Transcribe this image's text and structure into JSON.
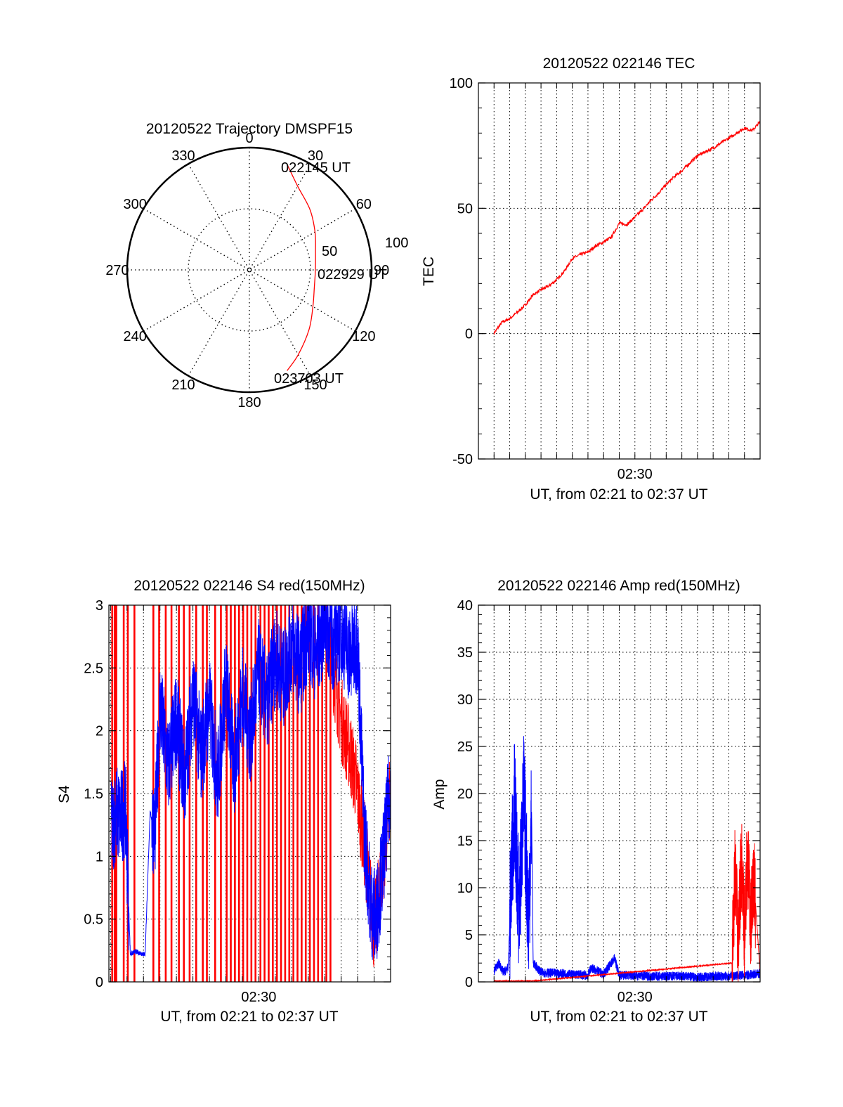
{
  "colors": {
    "red": "#ff0000",
    "blue": "#0000ff",
    "axis": "#000000",
    "grid": "#000000",
    "background": "#ffffff"
  },
  "polar": {
    "title": "20120522 Trajectory DMSPF15",
    "azimuth_labels": [
      "0",
      "30",
      "60",
      "90",
      "120",
      "150",
      "180",
      "210",
      "240",
      "270",
      "300",
      "330"
    ],
    "ring_labels": [
      "50",
      "100"
    ],
    "start_label": "022145 UT",
    "mid_label": "022929 UT",
    "end_label": "023703 UT"
  },
  "chart_data": [
    {
      "id": "trajectory",
      "type": "scatter",
      "title": "20120522 Trajectory DMSPF15",
      "coordinate_system": "polar",
      "angle_axis": "azimuth in degrees (0 at top, clockwise)",
      "radius_axis": "distance from zenith (0 center, 100 rim)",
      "rlim": [
        0,
        100
      ],
      "rings": [
        50,
        100
      ],
      "series": [
        {
          "color": "#ff0000",
          "points": [
            {
              "az": 19.5,
              "r": 92.0
            },
            {
              "az": 30,
              "r": 79.0
            },
            {
              "az": 45,
              "r": 70.0
            },
            {
              "az": 60,
              "r": 62.0
            },
            {
              "az": 75,
              "r": 56.0
            },
            {
              "az": 90,
              "r": 54.0
            },
            {
              "az": 105,
              "r": 55.0
            },
            {
              "az": 120,
              "r": 60.0
            },
            {
              "az": 135,
              "r": 69.0
            },
            {
              "az": 150,
              "r": 80.0
            },
            {
              "az": 159.5,
              "r": 88.0
            }
          ]
        }
      ]
    },
    {
      "id": "tec",
      "type": "line",
      "title": "20120522 022146 TEC",
      "xlabel": "UT, from 02:21 to 02:37 UT",
      "ylabel": "TEC",
      "x_unit": "minutes of UT hour 02",
      "xlim": [
        20.0,
        38.0
      ],
      "ylim": [
        -50,
        100
      ],
      "yticks": [
        -50,
        0,
        50,
        100
      ],
      "xtick_labels": [
        {
          "x": 30,
          "label": "02:30"
        }
      ],
      "grid": true,
      "series": [
        {
          "color": "#ff0000",
          "x": [
            21.0,
            21.5,
            22.0,
            22.5,
            23.0,
            23.5,
            24.0,
            24.5,
            25.0,
            25.5,
            26.0,
            26.5,
            27.0,
            27.5,
            28.0,
            28.5,
            29.0,
            29.5,
            30.0,
            30.5,
            31.0,
            31.5,
            32.0,
            32.5,
            33.0,
            33.5,
            34.0,
            34.5,
            35.0,
            35.5,
            36.0,
            36.5,
            37.0,
            37.5,
            38.0
          ],
          "y": [
            0.2,
            4.5,
            6.0,
            8.5,
            11.5,
            15.5,
            17.5,
            19.0,
            21.5,
            25.0,
            30.0,
            31.5,
            32.5,
            35.0,
            36.5,
            38.5,
            44.0,
            43.5,
            46.5,
            49.5,
            53.0,
            56.0,
            59.5,
            62.5,
            65.0,
            68.0,
            71.0,
            72.5,
            74.0,
            76.0,
            78.0,
            80.0,
            82.0,
            81.0,
            84.5
          ]
        }
      ]
    },
    {
      "id": "s4",
      "type": "line",
      "title": "20120522 022146 S4 red(150MHz)",
      "xlabel": "UT, from 02:21 to 02:37 UT",
      "ylabel": "S4",
      "x_unit": "minutes of UT hour 02",
      "xlim": [
        20.9,
        38.0
      ],
      "ylim": [
        0,
        3
      ],
      "yticks": [
        0,
        0.5,
        1,
        1.5,
        2,
        2.5,
        3
      ],
      "xtick_labels": [
        {
          "x": 30,
          "label": "02:30"
        }
      ],
      "grid": true,
      "series": [
        {
          "color": "#ff0000",
          "style": "vertical_spikes",
          "x": [
            21.1,
            21.25,
            21.35,
            21.8,
            22.05,
            22.45,
            23.6,
            23.95,
            24.35,
            24.7,
            25.15,
            25.45,
            25.8,
            26.2,
            26.6,
            26.85,
            27.35,
            27.7,
            28.05,
            28.3,
            28.55,
            28.8,
            29.05,
            29.3,
            29.55,
            29.8,
            30.1,
            30.35,
            30.6,
            30.85,
            31.1,
            31.35,
            31.6,
            31.85,
            32.1,
            32.35,
            32.6,
            32.85,
            33.1,
            33.35,
            33.6,
            33.85,
            34.1,
            34.35
          ],
          "y": [
            0,
            0,
            0,
            0,
            0,
            0,
            0,
            0,
            0,
            0,
            0,
            0,
            0,
            0,
            0,
            0,
            0,
            0,
            0,
            0,
            0,
            0,
            0,
            0,
            0,
            0,
            0,
            0,
            0,
            0,
            0,
            0,
            0,
            0,
            0,
            0,
            0,
            0,
            0,
            0,
            0,
            0,
            0,
            0
          ]
        },
        {
          "color": "#ff0000",
          "x": [
            34.5,
            35.0,
            35.5,
            35.9,
            36.2,
            36.6,
            37.0,
            37.5,
            38.0
          ],
          "y": [
            2.5,
            2.1,
            1.85,
            1.6,
            1.3,
            0.9,
            0.4,
            0.9,
            1.5
          ]
        },
        {
          "color": "#0000ff",
          "x": [
            21.05,
            21.3,
            21.6,
            21.9,
            22.2,
            22.5,
            22.8,
            23.1,
            23.4,
            23.7,
            24.0,
            24.5,
            25.0,
            25.5,
            26.0,
            26.5,
            27.0,
            27.5,
            28.0,
            28.5,
            29.0,
            29.5,
            30.0,
            30.5,
            31.0,
            31.5,
            32.0,
            32.5,
            33.0,
            33.5,
            34.0,
            34.5,
            35.0,
            35.5,
            36.0,
            36.4,
            36.8,
            37.1,
            37.5,
            38.0
          ],
          "y": [
            1.2,
            1.35,
            1.3,
            1.4,
            0.22,
            0.24,
            0.23,
            0.22,
            1.35,
            1.2,
            2.2,
            1.7,
            2.1,
            1.6,
            2.3,
            1.8,
            2.2,
            1.6,
            2.4,
            1.7,
            2.3,
            1.95,
            2.5,
            2.2,
            2.6,
            2.4,
            2.7,
            2.5,
            2.8,
            2.6,
            2.9,
            2.7,
            2.8,
            2.6,
            2.7,
            1.2,
            0.6,
            0.5,
            0.9,
            1.6
          ]
        }
      ]
    },
    {
      "id": "amp",
      "type": "line",
      "title": "20120522 022146 Amp red(150MHz)",
      "xlabel": "UT, from 02:21 to 02:37 UT",
      "ylabel": "Amp",
      "x_unit": "minutes of UT hour 02",
      "xlim": [
        20.0,
        38.0
      ],
      "ylim": [
        0,
        40
      ],
      "yticks": [
        0,
        5,
        10,
        15,
        20,
        25,
        30,
        35,
        40
      ],
      "xtick_labels": [
        {
          "x": 30,
          "label": "02:30"
        }
      ],
      "grid": true,
      "series": [
        {
          "color": "#0000ff",
          "x": [
            21.0,
            21.3,
            21.6,
            21.9,
            22.0,
            22.3,
            22.6,
            22.9,
            23.2,
            23.4,
            23.5,
            24.0,
            25.0,
            26.0,
            27.0,
            27.2,
            28.0,
            28.7,
            29.0,
            30.0,
            31.0,
            32.0,
            33.0,
            34.0,
            35.0,
            36.0,
            37.0,
            38.0
          ],
          "y": [
            1.2,
            2.0,
            1.0,
            1.5,
            6.0,
            19.0,
            7.0,
            20.0,
            6.5,
            18.0,
            2.0,
            1.0,
            0.9,
            0.8,
            0.7,
            1.5,
            0.8,
            2.5,
            0.7,
            0.7,
            0.6,
            0.6,
            0.6,
            0.5,
            0.6,
            0.6,
            0.7,
            0.9
          ]
        },
        {
          "color": "#ff0000",
          "x": [
            21.0,
            23.5,
            36.2,
            36.4,
            36.6,
            36.8,
            37.0,
            37.2,
            37.4,
            37.6,
            38.0
          ],
          "y": [
            0.1,
            0.1,
            2.0,
            12.0,
            4.0,
            13.0,
            5.0,
            13.5,
            6.0,
            11.0,
            1.0
          ]
        }
      ]
    }
  ]
}
